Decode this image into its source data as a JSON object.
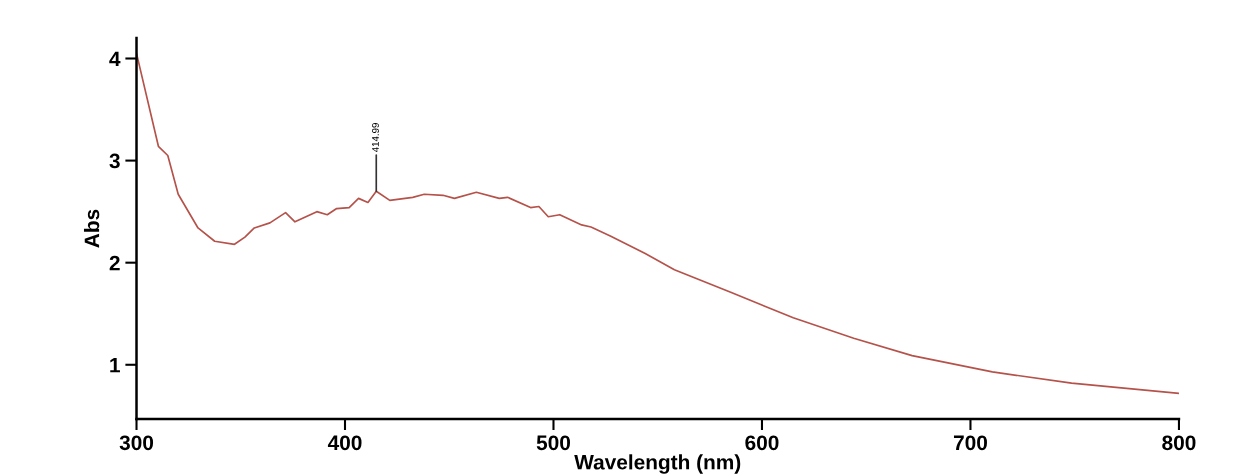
{
  "chart_data": {
    "type": "line",
    "xlabel": "Wavelength (nm)",
    "ylabel": "Abs",
    "x": [
      300,
      310.5,
      315,
      320,
      329.5,
      337.5,
      347,
      352,
      356.5,
      364,
      371.5,
      376,
      386.5,
      391.5,
      396,
      402,
      406.5,
      411,
      415,
      421.5,
      432.5,
      438,
      447,
      452.5,
      463,
      474,
      478,
      489,
      493,
      497.5,
      503,
      513.5,
      518,
      527.5,
      544,
      558,
      585,
      615,
      644,
      672,
      710.5,
      748.5,
      800
    ],
    "series": [
      {
        "color": "#b5524a",
        "values": [
          4.05,
          3.14,
          3.05,
          2.67,
          2.34,
          2.21,
          2.18,
          2.25,
          2.34,
          2.39,
          2.49,
          2.4,
          2.5,
          2.47,
          2.53,
          2.54,
          2.63,
          2.59,
          2.7,
          2.61,
          2.64,
          2.67,
          2.66,
          2.63,
          2.69,
          2.63,
          2.64,
          2.54,
          2.55,
          2.45,
          2.47,
          2.37,
          2.35,
          2.26,
          2.09,
          1.93,
          1.71,
          1.46,
          1.26,
          1.09,
          0.93,
          0.82,
          0.72
        ]
      }
    ],
    "annotations": [
      {
        "text": "414.99",
        "x": 415,
        "y": 2.7
      }
    ],
    "xlim": [
      300,
      800
    ],
    "xticks": [
      300,
      400,
      500,
      600,
      700,
      800
    ],
    "ylim": [
      0.47,
      4.2
    ],
    "yticks": [
      1,
      2,
      3,
      4
    ],
    "grid": false,
    "legend": false,
    "marker": "none",
    "line_style": "solid"
  }
}
